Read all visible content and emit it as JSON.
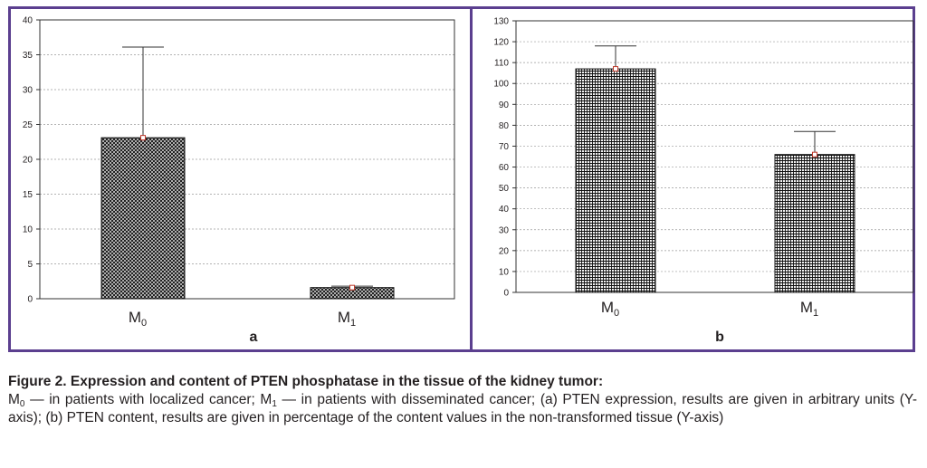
{
  "chart_data": [
    {
      "type": "bar",
      "panel_label": "a",
      "categories": [
        {
          "main": "M",
          "sub": "0"
        },
        {
          "main": "M",
          "sub": "1"
        }
      ],
      "values": [
        23.1,
        1.6
      ],
      "errors": [
        13.0,
        0.2
      ],
      "ylim": [
        0,
        40
      ],
      "yticks": [
        0,
        5,
        10,
        15,
        20,
        25,
        30,
        35,
        40
      ],
      "grid": true,
      "pattern": "crosshatch"
    },
    {
      "type": "bar",
      "panel_label": "b",
      "categories": [
        {
          "main": "M",
          "sub": "0"
        },
        {
          "main": "M",
          "sub": "1"
        }
      ],
      "values": [
        107,
        66
      ],
      "errors": [
        11,
        11
      ],
      "ylim": [
        0,
        130
      ],
      "yticks": [
        0,
        10,
        20,
        30,
        40,
        50,
        60,
        70,
        80,
        90,
        100,
        110,
        120,
        130
      ],
      "grid": true,
      "pattern": "grid"
    }
  ],
  "caption": {
    "title": "Figure 2. Expression and content of PTEN phosphatase in the tissue of the kidney tumor:",
    "parts": [
      {
        "t": "M"
      },
      {
        "sub": "0"
      },
      {
        "t": " — in patients with localized cancer; M"
      },
      {
        "sub": "1"
      },
      {
        "t": " — in patients with disseminated cancer; (a) PTEN expression, results are given in arbitrary units (Y-axis); (b) PTEN content, results are given in percentage of the content values in the non-transformed tissue (Y-axis)"
      }
    ]
  },
  "colors": {
    "frame": "#5b3f8f",
    "bar_fill": "#d9d9d9",
    "bar_pattern": "#1a1a1a",
    "grid": "#9a9a9a",
    "marker": "#c0392b"
  }
}
